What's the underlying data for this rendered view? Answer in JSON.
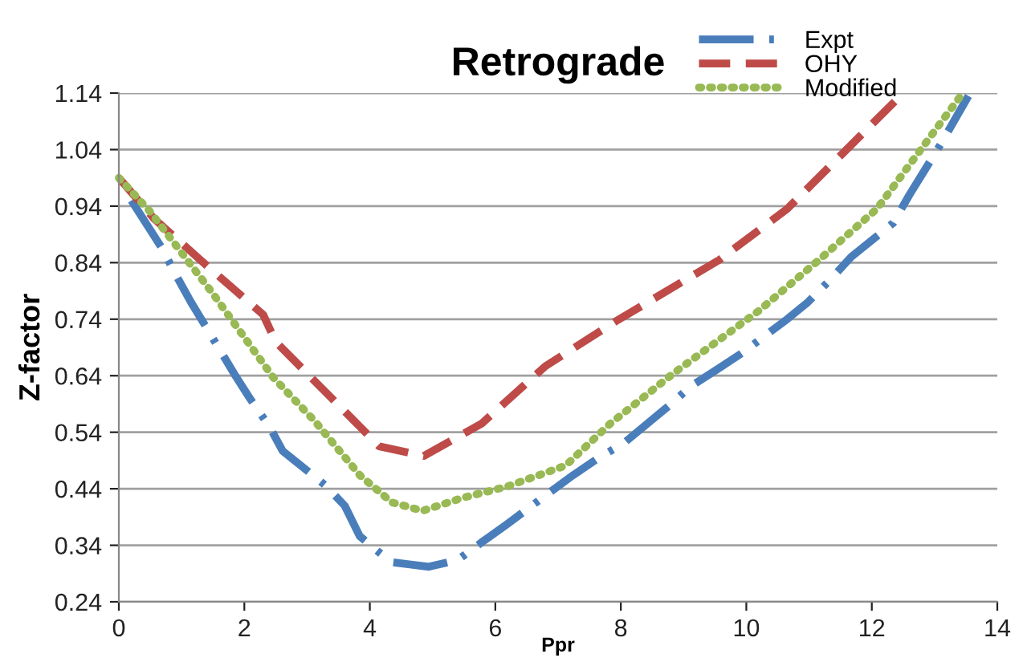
{
  "chart_data": {
    "type": "line",
    "title": "Retrograde",
    "xlabel": "Ppr",
    "ylabel": "Z-factor",
    "xlim": [
      0,
      14
    ],
    "xticks": [
      0,
      2,
      4,
      6,
      8,
      10,
      12,
      14
    ],
    "ylim": [
      0.24,
      1.14
    ],
    "yticks": [
      0.24,
      0.34,
      0.44,
      0.54,
      0.64,
      0.74,
      0.84,
      0.94,
      1.04,
      1.14
    ],
    "grid": "y",
    "legend": "top right",
    "marker": "none",
    "series": [
      {
        "name": "Expt",
        "color": "#4a7ebb",
        "line_style": "dashdot",
        "x": [
          0.2,
          0.69,
          0.92,
          1.15,
          1.38,
          1.84,
          2.1,
          2.4,
          2.61,
          3.28,
          3.6,
          3.84,
          4.12,
          4.35,
          4.94,
          5.4,
          5.78,
          6.17,
          6.86,
          7.24,
          7.65,
          8.04,
          8.8,
          9.1,
          9.52,
          9.93,
          10.65,
          10.98,
          11.34,
          11.67,
          12.34,
          12.6,
          12.85,
          13.1,
          13.54
        ],
        "values": [
          0.95,
          0.865,
          0.816,
          0.77,
          0.728,
          0.643,
          0.598,
          0.55,
          0.507,
          0.447,
          0.41,
          0.356,
          0.33,
          0.31,
          0.302,
          0.314,
          0.345,
          0.376,
          0.433,
          0.464,
          0.495,
          0.52,
          0.59,
          0.62,
          0.65,
          0.68,
          0.74,
          0.77,
          0.81,
          0.85,
          0.91,
          0.96,
          1.005,
          1.05,
          1.135
        ]
      },
      {
        "name": "OHY",
        "color": "#be4b48",
        "line_style": "dashed",
        "x": [
          0,
          0.56,
          1.48,
          2.3,
          2.5,
          3.84,
          4.15,
          4.86,
          5.78,
          6.8,
          7.93,
          9.57,
          10.65,
          12.5
        ],
        "values": [
          0.99,
          0.918,
          0.827,
          0.748,
          0.7,
          0.55,
          0.515,
          0.498,
          0.555,
          0.657,
          0.737,
          0.845,
          0.935,
          1.14
        ]
      },
      {
        "name": "Modified",
        "color": "#98b954",
        "line_style": "dotted",
        "x": [
          0,
          0.5,
          1.48,
          2.46,
          3.12,
          3.84,
          4.35,
          4.84,
          5.48,
          6.19,
          7.12,
          7.83,
          8.86,
          10.19,
          11.16,
          12.08,
          12.8,
          13.41
        ],
        "values": [
          0.99,
          0.93,
          0.788,
          0.637,
          0.56,
          0.464,
          0.416,
          0.401,
          0.424,
          0.444,
          0.481,
          0.555,
          0.646,
          0.754,
          0.845,
          0.935,
          1.043,
          1.134
        ]
      }
    ]
  }
}
